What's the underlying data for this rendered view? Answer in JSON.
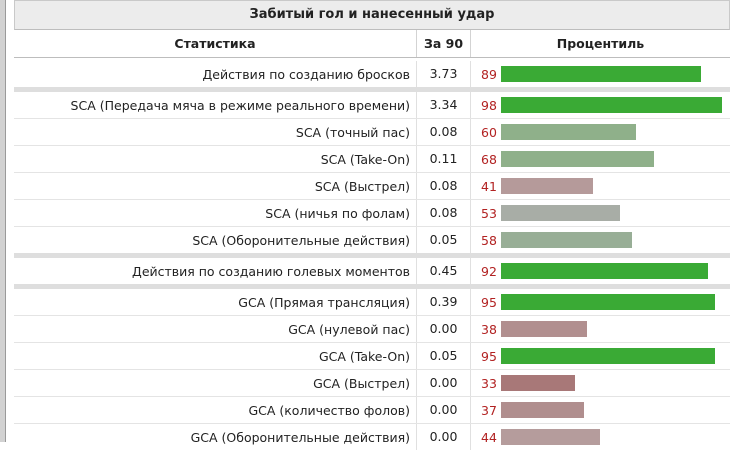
{
  "title": "Забитый гол и нанесенный удар",
  "columns": {
    "stat": "Статистика",
    "per90": "За 90",
    "percentile": "Процентиль"
  },
  "groups": [
    {
      "rows": [
        {
          "label": "Действия по созданию бросков",
          "per90": "3.73",
          "percentile": 89,
          "color": "#3aaa35",
          "num_color": "#b22222"
        }
      ]
    },
    {
      "rows": [
        {
          "label": "SCA (Передача мяча в режиме реального времени)",
          "per90": "3.34",
          "percentile": 98,
          "color": "#3aaa35",
          "num_color": "#b22222"
        },
        {
          "label": "SCA (точный пас)",
          "per90": "0.08",
          "percentile": 60,
          "color": "#8fb08a",
          "num_color": "#b22222"
        },
        {
          "label": "SCA (Take-On)",
          "per90": "0.11",
          "percentile": 68,
          "color": "#8fb08a",
          "num_color": "#b22222"
        },
        {
          "label": "SCA (Выстрел)",
          "per90": "0.08",
          "percentile": 41,
          "color": "#b59a9a",
          "num_color": "#b22222"
        },
        {
          "label": "SCA (ничья по фолам)",
          "per90": "0.08",
          "percentile": 53,
          "color": "#a8ada6",
          "num_color": "#b22222"
        },
        {
          "label": "SCA (Оборонительные действия)",
          "per90": "0.05",
          "percentile": 58,
          "color": "#98ae96",
          "num_color": "#b22222"
        }
      ]
    },
    {
      "rows": [
        {
          "label": "Действия по созданию голевых моментов",
          "per90": "0.45",
          "percentile": 92,
          "color": "#3aaa35",
          "num_color": "#b22222"
        }
      ]
    },
    {
      "rows": [
        {
          "label": "GCA (Прямая трансляция)",
          "per90": "0.39",
          "percentile": 95,
          "color": "#3aaa35",
          "num_color": "#b22222"
        },
        {
          "label": "GCA (нулевой пас)",
          "per90": "0.00",
          "percentile": 38,
          "color": "#b18f8f",
          "num_color": "#b22222"
        },
        {
          "label": "GCA (Take-On)",
          "per90": "0.05",
          "percentile": 95,
          "color": "#3aaa35",
          "num_color": "#b22222"
        },
        {
          "label": "GCA (Выстрел)",
          "per90": "0.00",
          "percentile": 33,
          "color": "#a87878",
          "num_color": "#b22222"
        },
        {
          "label": "GCA (количество фолов)",
          "per90": "0.00",
          "percentile": 37,
          "color": "#b08e8e",
          "num_color": "#b22222"
        },
        {
          "label": "GCA (Оборонительные действия)",
          "per90": "0.00",
          "percentile": 44,
          "color": "#b59c9c",
          "num_color": "#b22222"
        }
      ]
    }
  ]
}
